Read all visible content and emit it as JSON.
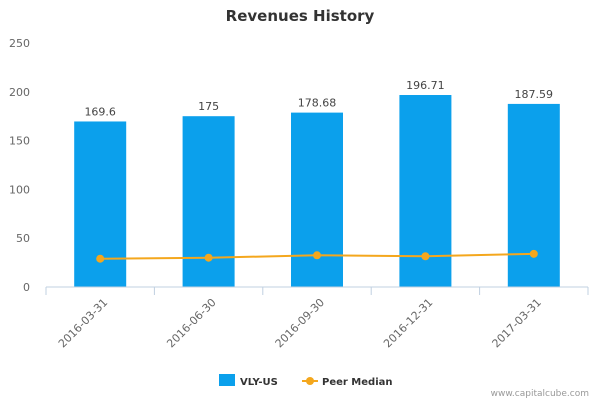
{
  "chart_data": {
    "type": "bar",
    "title": "Revenues History",
    "categories": [
      "2016-03-31",
      "2016-06-30",
      "2016-09-30",
      "2016-12-31",
      "2017-03-31"
    ],
    "series": [
      {
        "name": "VLY-US",
        "type": "bar",
        "color": "#0ba0ec",
        "values": [
          169.6,
          175,
          178.68,
          196.71,
          187.59
        ],
        "labels": [
          "169.6",
          "175",
          "178.68",
          "196.71",
          "187.59"
        ]
      },
      {
        "name": "Peer Median",
        "type": "line",
        "color": "#f4a71d",
        "values": [
          29,
          30,
          32.5,
          31.5,
          34
        ]
      }
    ],
    "yticks": [
      0,
      50,
      100,
      150,
      200,
      250
    ],
    "ylim": [
      0,
      250
    ],
    "grid": false,
    "legend": "bottom-center"
  },
  "watermark": "www.capitalcube.com"
}
